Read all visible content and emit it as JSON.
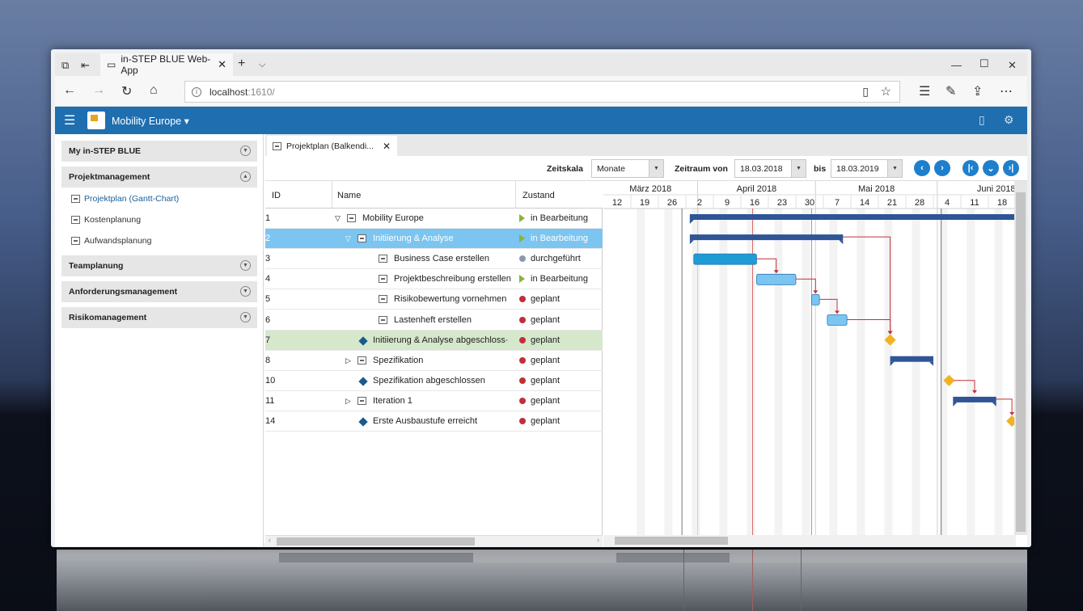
{
  "browser": {
    "tab_title": "in-STEP BLUE Web-App",
    "url_host": "localhost",
    "url_port": ":1610/"
  },
  "app": {
    "project": "Mobility Europe ▾"
  },
  "sidebar": {
    "sections": [
      {
        "label": "My in-STEP BLUE",
        "chev": "▼"
      },
      {
        "label": "Projektmanagement",
        "chev": "▲"
      },
      {
        "label": "Teamplanung",
        "chev": "▼"
      },
      {
        "label": "Anforderungsmanagement",
        "chev": "▼"
      },
      {
        "label": "Risikomanagement",
        "chev": "▼"
      }
    ],
    "items": [
      {
        "label": "Projektplan (Gantt-Chart)"
      },
      {
        "label": "Kostenplanung"
      },
      {
        "label": "Aufwandsplanung"
      }
    ]
  },
  "page_tab": {
    "label": "Projektplan (Balkendi..."
  },
  "toolbar": {
    "zeitskala_label": "Zeitskala",
    "zeitskala_value": "Monate",
    "zeitraum_label": "Zeitraum von",
    "from": "18.03.2018",
    "bis_label": "bis",
    "to": "18.03.2019"
  },
  "grid": {
    "headers": {
      "id": "ID",
      "name": "Name",
      "zustand": "Zustand"
    },
    "rows": [
      {
        "id": "1",
        "name": "Mobility Europe",
        "status": "in Bearbeitung",
        "kind": "group",
        "indent": 0,
        "expander": "▽",
        "marker": "tri",
        "tone": "normal"
      },
      {
        "id": "2",
        "name": "Initiierung & Analyse",
        "status": "in Bearbeitung",
        "kind": "group",
        "indent": 1,
        "expander": "▽",
        "marker": "tri",
        "tone": "selected"
      },
      {
        "id": "3",
        "name": "Business Case erstellen",
        "status": "durchgeführt",
        "kind": "task",
        "indent": 2,
        "expander": "",
        "marker": "gray",
        "tone": "normal"
      },
      {
        "id": "4",
        "name": "Projektbeschreibung erstellen",
        "status": "in Bearbeitung",
        "kind": "task",
        "indent": 2,
        "expander": "",
        "marker": "tri",
        "tone": "normal"
      },
      {
        "id": "5",
        "name": "Risikobewertung vornehmen",
        "status": "geplant",
        "kind": "task",
        "indent": 2,
        "expander": "",
        "marker": "red",
        "tone": "normal"
      },
      {
        "id": "6",
        "name": "Lastenheft erstellen",
        "status": "geplant",
        "kind": "task",
        "indent": 2,
        "expander": "",
        "marker": "red",
        "tone": "normal"
      },
      {
        "id": "7",
        "name": "Initiierung & Analyse abgeschloss·",
        "status": "geplant",
        "kind": "milestone",
        "indent": 1,
        "expander": "",
        "marker": "red",
        "tone": "green"
      },
      {
        "id": "8",
        "name": "Spezifikation",
        "status": "geplant",
        "kind": "group",
        "indent": 1,
        "expander": "▷",
        "marker": "red",
        "tone": "normal"
      },
      {
        "id": "10",
        "name": "Spezifikation abgeschlossen",
        "status": "geplant",
        "kind": "milestone",
        "indent": 1,
        "expander": "",
        "marker": "red",
        "tone": "normal"
      },
      {
        "id": "11",
        "name": "Iteration 1",
        "status": "geplant",
        "kind": "group",
        "indent": 1,
        "expander": "▷",
        "marker": "red",
        "tone": "normal"
      },
      {
        "id": "14",
        "name": "Erste Ausbaustufe erreicht",
        "status": "geplant",
        "kind": "milestone",
        "indent": 1,
        "expander": "",
        "marker": "red",
        "tone": "normal"
      }
    ]
  },
  "gantt": {
    "months": [
      "März 2018",
      "April 2018",
      "Mai 2018",
      "Juni 2018"
    ],
    "weeks": [
      "12",
      "19",
      "26",
      "2",
      "9",
      "16",
      "23",
      "30",
      "7",
      "14",
      "21",
      "28",
      "4",
      "11",
      "18"
    ],
    "bars": [
      {
        "row": 0,
        "start": "2018-03-30",
        "end": "2018-06-22",
        "type": "summary"
      },
      {
        "row": 1,
        "start": "2018-03-30",
        "end": "2018-05-08",
        "type": "summary"
      },
      {
        "row": 2,
        "start": "2018-03-31",
        "end": "2018-04-16",
        "type": "done"
      },
      {
        "row": 3,
        "start": "2018-04-16",
        "end": "2018-04-26",
        "type": "task"
      },
      {
        "row": 4,
        "start": "2018-04-30",
        "end": "2018-05-02",
        "type": "task"
      },
      {
        "row": 5,
        "start": "2018-05-04",
        "end": "2018-05-09",
        "type": "task"
      },
      {
        "row": 6,
        "start": "2018-05-20",
        "type": "milestone"
      },
      {
        "row": 7,
        "start": "2018-05-20",
        "end": "2018-05-31",
        "type": "summary"
      },
      {
        "row": 8,
        "start": "2018-06-04",
        "type": "milestone"
      },
      {
        "row": 9,
        "start": "2018-06-05",
        "end": "2018-06-16",
        "type": "summary"
      },
      {
        "row": 10,
        "start": "2018-06-20",
        "type": "milestone"
      }
    ],
    "colors": {
      "summary": "#2f5597",
      "done": "#1f9bd6",
      "task": "#7cc5f0",
      "milestone": "#f0b323",
      "link": "#c0303a",
      "today": "#d34a4a"
    }
  }
}
